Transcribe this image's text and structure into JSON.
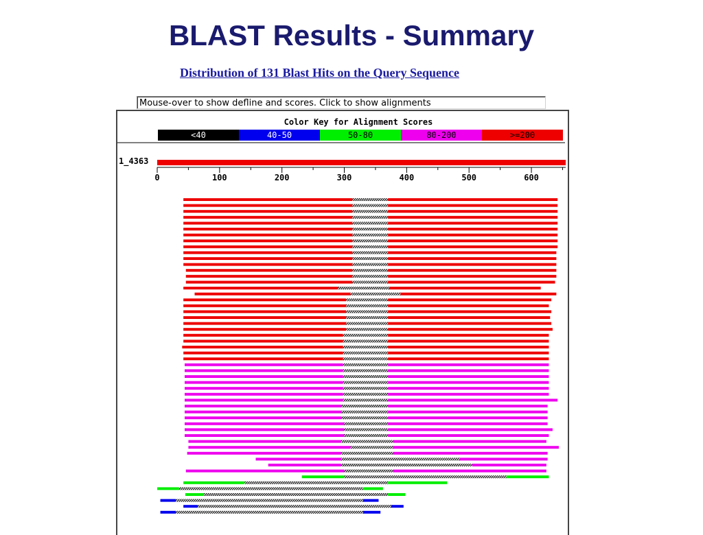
{
  "slide": {
    "title": "BLAST Results - Summary"
  },
  "header": {
    "link_text": "Distribution of 131 Blast Hits on the Query Sequence"
  },
  "info_box": {
    "text": "Mouse-over to show defline and scores. Click to show alignments"
  },
  "color_key": {
    "title": "Color Key for Alignment Scores",
    "items": [
      {
        "label": "<40",
        "color": "#000000",
        "text_color": "#ffffff"
      },
      {
        "label": "40-50",
        "color": "#0000ee",
        "text_color": "#ffffff"
      },
      {
        "label": "50-80",
        "color": "#00ee00",
        "text_color": "#000000"
      },
      {
        "label": "80-200",
        "color": "#ee00ee",
        "text_color": "#000000"
      },
      {
        "label": ">=200",
        "color": "#ee0000",
        "text_color": "#000000"
      }
    ]
  },
  "query": {
    "label": "1_4363",
    "length": 655
  },
  "chart_data": {
    "type": "bar",
    "title": "",
    "xlim": [
      0,
      655
    ],
    "ticks": [
      0,
      100,
      200,
      300,
      400,
      500,
      600
    ],
    "tick_labels": [
      "0",
      "100",
      "200",
      "300",
      "400",
      "500",
      "600"
    ],
    "minor_step": 50,
    "hits": [
      {
        "s": [
          [
            42,
            313
          ],
          [
            370,
            642
          ]
        ],
        "g": [
          313,
          370
        ],
        "c": "#ee0000"
      },
      {
        "s": [
          [
            42,
            313
          ],
          [
            370,
            642
          ]
        ],
        "g": [
          313,
          370
        ],
        "c": "#ee0000"
      },
      {
        "s": [
          [
            42,
            313
          ],
          [
            370,
            642
          ]
        ],
        "g": [
          313,
          370
        ],
        "c": "#ee0000"
      },
      {
        "s": [
          [
            42,
            313
          ],
          [
            370,
            642
          ]
        ],
        "g": [
          313,
          370
        ],
        "c": "#ee0000"
      },
      {
        "s": [
          [
            42,
            313
          ],
          [
            370,
            642
          ]
        ],
        "g": [
          313,
          370
        ],
        "c": "#ee0000"
      },
      {
        "s": [
          [
            42,
            313
          ],
          [
            370,
            642
          ]
        ],
        "g": [
          313,
          370
        ],
        "c": "#ee0000"
      },
      {
        "s": [
          [
            42,
            313
          ],
          [
            370,
            642
          ]
        ],
        "g": [
          313,
          370
        ],
        "c": "#ee0000"
      },
      {
        "s": [
          [
            42,
            313
          ],
          [
            370,
            642
          ]
        ],
        "g": [
          313,
          370
        ],
        "c": "#ee0000"
      },
      {
        "s": [
          [
            42,
            313
          ],
          [
            370,
            642
          ]
        ],
        "g": [
          313,
          370
        ],
        "c": "#ee0000"
      },
      {
        "s": [
          [
            42,
            313
          ],
          [
            370,
            640
          ]
        ],
        "g": [
          313,
          370
        ],
        "c": "#ee0000"
      },
      {
        "s": [
          [
            42,
            313
          ],
          [
            370,
            640
          ]
        ],
        "g": [
          313,
          370
        ],
        "c": "#ee0000"
      },
      {
        "s": [
          [
            42,
            313
          ],
          [
            370,
            640
          ]
        ],
        "g": [
          313,
          370
        ],
        "c": "#ee0000"
      },
      {
        "s": [
          [
            46,
            313
          ],
          [
            370,
            640
          ]
        ],
        "g": [
          313,
          370
        ],
        "c": "#ee0000"
      },
      {
        "s": [
          [
            46,
            313
          ],
          [
            370,
            640
          ]
        ],
        "g": [
          313,
          370
        ],
        "c": "#ee0000"
      },
      {
        "s": [
          [
            46,
            313
          ],
          [
            370,
            638
          ]
        ],
        "g": [
          313,
          370
        ],
        "c": "#ee0000"
      },
      {
        "s": [
          [
            42,
            290
          ],
          [
            372,
            615
          ]
        ],
        "g": [
          290,
          372
        ],
        "c": "#ee0000"
      },
      {
        "s": [
          [
            60,
            310
          ],
          [
            390,
            640
          ]
        ],
        "g": [
          310,
          390
        ],
        "c": "#ee0000"
      },
      {
        "s": [
          [
            42,
            303
          ],
          [
            370,
            632
          ]
        ],
        "g": [
          303,
          370
        ],
        "c": "#ee0000"
      },
      {
        "s": [
          [
            42,
            303
          ],
          [
            370,
            628
          ]
        ],
        "g": [
          303,
          370
        ],
        "c": "#ee0000"
      },
      {
        "s": [
          [
            42,
            303
          ],
          [
            370,
            632
          ]
        ],
        "g": [
          303,
          370
        ],
        "c": "#ee0000"
      },
      {
        "s": [
          [
            42,
            303
          ],
          [
            370,
            630
          ]
        ],
        "g": [
          303,
          370
        ],
        "c": "#ee0000"
      },
      {
        "s": [
          [
            42,
            303
          ],
          [
            370,
            632
          ]
        ],
        "g": [
          303,
          370
        ],
        "c": "#ee0000"
      },
      {
        "s": [
          [
            42,
            303
          ],
          [
            370,
            634
          ]
        ],
        "g": [
          303,
          370
        ],
        "c": "#ee0000"
      },
      {
        "s": [
          [
            42,
            298
          ],
          [
            370,
            628
          ]
        ],
        "g": [
          298,
          370
        ],
        "c": "#ee0000"
      },
      {
        "s": [
          [
            42,
            298
          ],
          [
            370,
            628
          ]
        ],
        "g": [
          298,
          370
        ],
        "c": "#ee0000"
      },
      {
        "s": [
          [
            40,
            298
          ],
          [
            370,
            628
          ]
        ],
        "g": [
          298,
          370
        ],
        "c": "#ee0000"
      },
      {
        "s": [
          [
            42,
            298
          ],
          [
            370,
            628
          ]
        ],
        "g": [
          298,
          370
        ],
        "c": "#ee0000"
      },
      {
        "s": [
          [
            42,
            298
          ],
          [
            370,
            628
          ]
        ],
        "g": [
          298,
          370
        ],
        "c": "#ee0000"
      },
      {
        "s": [
          [
            44,
            298
          ],
          [
            370,
            628
          ]
        ],
        "g": [
          298,
          370
        ],
        "c": "#ee00ee"
      },
      {
        "s": [
          [
            44,
            298
          ],
          [
            370,
            628
          ]
        ],
        "g": [
          298,
          370
        ],
        "c": "#ee00ee"
      },
      {
        "s": [
          [
            44,
            298
          ],
          [
            370,
            628
          ]
        ],
        "g": [
          298,
          370
        ],
        "c": "#ee00ee"
      },
      {
        "s": [
          [
            44,
            298
          ],
          [
            370,
            628
          ]
        ],
        "g": [
          298,
          370
        ],
        "c": "#ee00ee"
      },
      {
        "s": [
          [
            44,
            298
          ],
          [
            370,
            628
          ]
        ],
        "g": [
          298,
          370
        ],
        "c": "#ee00ee"
      },
      {
        "s": [
          [
            44,
            298
          ],
          [
            370,
            628
          ]
        ],
        "g": [
          298,
          370
        ],
        "c": "#ee00ee"
      },
      {
        "s": [
          [
            44,
            298
          ],
          [
            370,
            642
          ]
        ],
        "g": [
          298,
          370
        ],
        "c": "#ee00ee"
      },
      {
        "s": [
          [
            44,
            296
          ],
          [
            370,
            626
          ]
        ],
        "g": [
          296,
          370
        ],
        "c": "#ee00ee"
      },
      {
        "s": [
          [
            44,
            296
          ],
          [
            370,
            626
          ]
        ],
        "g": [
          296,
          370
        ],
        "c": "#ee00ee"
      },
      {
        "s": [
          [
            44,
            296
          ],
          [
            370,
            626
          ]
        ],
        "g": [
          296,
          370
        ],
        "c": "#ee00ee"
      },
      {
        "s": [
          [
            44,
            300
          ],
          [
            370,
            626
          ]
        ],
        "g": [
          300,
          370
        ],
        "c": "#ee00ee"
      },
      {
        "s": [
          [
            44,
            300
          ],
          [
            370,
            634
          ]
        ],
        "g": [
          300,
          370
        ],
        "c": "#ee00ee"
      },
      {
        "s": [
          [
            44,
            300
          ],
          [
            370,
            628
          ]
        ],
        "g": [
          300,
          370
        ],
        "c": "#ee00ee"
      },
      {
        "s": [
          [
            50,
            295
          ],
          [
            378,
            624
          ]
        ],
        "g": [
          295,
          378
        ],
        "c": "#ee00ee"
      },
      {
        "s": [
          [
            50,
            310
          ],
          [
            378,
            644
          ]
        ],
        "g": [
          310,
          378
        ],
        "c": "#ee00ee"
      },
      {
        "s": [
          [
            48,
            295
          ],
          [
            378,
            626
          ]
        ],
        "g": [
          295,
          378
        ],
        "c": "#ee00ee"
      },
      {
        "s": [
          [
            158,
            295
          ],
          [
            485,
            626
          ]
        ],
        "g": [
          295,
          485
        ],
        "c": "#ee00ee"
      },
      {
        "s": [
          [
            178,
            295
          ],
          [
            505,
            624
          ]
        ],
        "g": [
          295,
          505
        ],
        "c": "#ee00ee"
      },
      {
        "s": [
          [
            46,
            300
          ],
          [
            378,
            624
          ]
        ],
        "g": [
          300,
          378
        ],
        "c": "#ee00ee"
      },
      {
        "s": [
          [
            232,
            300
          ],
          [
            560,
            628
          ]
        ],
        "g": [
          300,
          560
        ],
        "c": "#00ee00"
      },
      {
        "s": [
          [
            42,
            140
          ],
          [
            370,
            465
          ]
        ],
        "g": [
          140,
          370
        ],
        "c": "#00ee00"
      },
      {
        "s": [
          [
            0,
            35
          ],
          [
            330,
            362
          ]
        ],
        "g": [
          35,
          330
        ],
        "c": "#00ee00"
      },
      {
        "s": [
          [
            45,
            75
          ],
          [
            370,
            398
          ]
        ],
        "g": [
          75,
          370
        ],
        "c": "#00ee00"
      },
      {
        "s": [
          [
            5,
            30
          ],
          [
            330,
            355
          ]
        ],
        "g": [
          30,
          330
        ],
        "c": "#0000ee"
      },
      {
        "s": [
          [
            42,
            65
          ],
          [
            375,
            395
          ]
        ],
        "g": [
          65,
          375
        ],
        "c": "#0000ee"
      },
      {
        "s": [
          [
            5,
            30
          ],
          [
            330,
            358
          ]
        ],
        "g": [
          30,
          330
        ],
        "c": "#0000ee"
      }
    ]
  }
}
